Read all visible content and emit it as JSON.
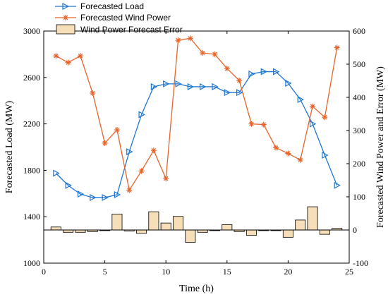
{
  "chart_data": {
    "type": "line+bar",
    "xlabel": "Time (h)",
    "ylabel_left": "Forecasted Load (MW)",
    "ylabel_right": "Forecasted Wind Power and Error (MW)",
    "xlim": [
      0,
      25
    ],
    "ylim_left": [
      1000,
      3000
    ],
    "ylim_right": [
      -100,
      600
    ],
    "x_ticks": [
      "0",
      "5",
      "10",
      "15",
      "20",
      "25"
    ],
    "y_ticks_left": [
      "1000",
      "1400",
      "1800",
      "2200",
      "2600",
      "3000"
    ],
    "y_ticks_right": [
      "-100",
      "0",
      "100",
      "200",
      "300",
      "400",
      "500",
      "600"
    ],
    "x": [
      1,
      2,
      3,
      4,
      5,
      6,
      7,
      8,
      9,
      10,
      11,
      12,
      13,
      14,
      15,
      16,
      17,
      18,
      19,
      20,
      21,
      22,
      23,
      24
    ],
    "series": [
      {
        "name": "Forecasted Load",
        "axis": "left",
        "color": "#1f77d4",
        "marker": "triangle-right",
        "values": [
          1775,
          1670,
          1595,
          1565,
          1565,
          1590,
          1960,
          2280,
          2520,
          2545,
          2545,
          2520,
          2520,
          2520,
          2470,
          2470,
          2630,
          2650,
          2650,
          2550,
          2410,
          2200,
          1930,
          1670
        ]
      },
      {
        "name": "Forecasted Wind Power",
        "axis": "right",
        "color": "#e8642a",
        "marker": "asterisk",
        "values": [
          525,
          505,
          525,
          413,
          262,
          302,
          120,
          178,
          240,
          155,
          572,
          578,
          534,
          530,
          487,
          451,
          320,
          318,
          248,
          231,
          211,
          373,
          340,
          550
        ]
      },
      {
        "name": "Wind Power Forecast Error",
        "axis": "right",
        "type": "bar",
        "color": "#f5deb8",
        "values": [
          9,
          -7,
          -7,
          -5,
          -2,
          48,
          -3,
          -10,
          55,
          21,
          41,
          -37,
          -7,
          -2,
          16,
          -5,
          -16,
          -2,
          -2,
          -22,
          30,
          70,
          -13,
          5
        ]
      }
    ],
    "legend_position": "top-left",
    "grid": false
  }
}
